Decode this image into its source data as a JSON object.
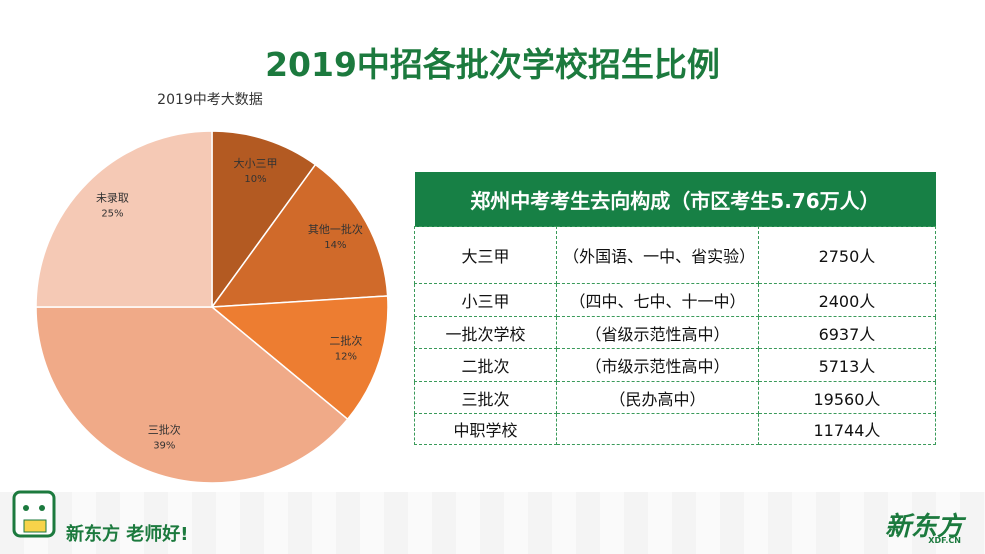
{
  "title": "2019中招各批次学校招生比例",
  "chart_data": {
    "type": "pie",
    "title": "2019中考大数据",
    "categories": [
      "大小三甲",
      "其他一批次",
      "二批次",
      "三批次",
      "未录取"
    ],
    "values": [
      10,
      14,
      12,
      39,
      25
    ],
    "value_labels": [
      "10%",
      "14%",
      "12%",
      "39%",
      "25%"
    ],
    "colors": [
      "#b35a22",
      "#d06a2a",
      "#ed7d31",
      "#f0aa88",
      "#f5c9b5"
    ]
  },
  "table": {
    "header": "郑州中考考生去向构成（市区考生5.76万人）",
    "rows": [
      [
        "大三甲",
        "（外国语、一中、省实验）",
        "2750人"
      ],
      [
        "小三甲",
        "（四中、七中、十一中）",
        "2400人"
      ],
      [
        "一批次学校",
        "（省级示范性高中）",
        "6937人"
      ],
      [
        "二批次",
        "（市级示范性高中）",
        "5713人"
      ],
      [
        "三批次",
        "（民办高中）",
        "19560人"
      ],
      [
        "中职学校",
        null,
        "11744人"
      ]
    ]
  },
  "footer": {
    "slogan": "新东方 老师好!",
    "logo": "新东方",
    "logo_sub": "XDF.CN"
  }
}
